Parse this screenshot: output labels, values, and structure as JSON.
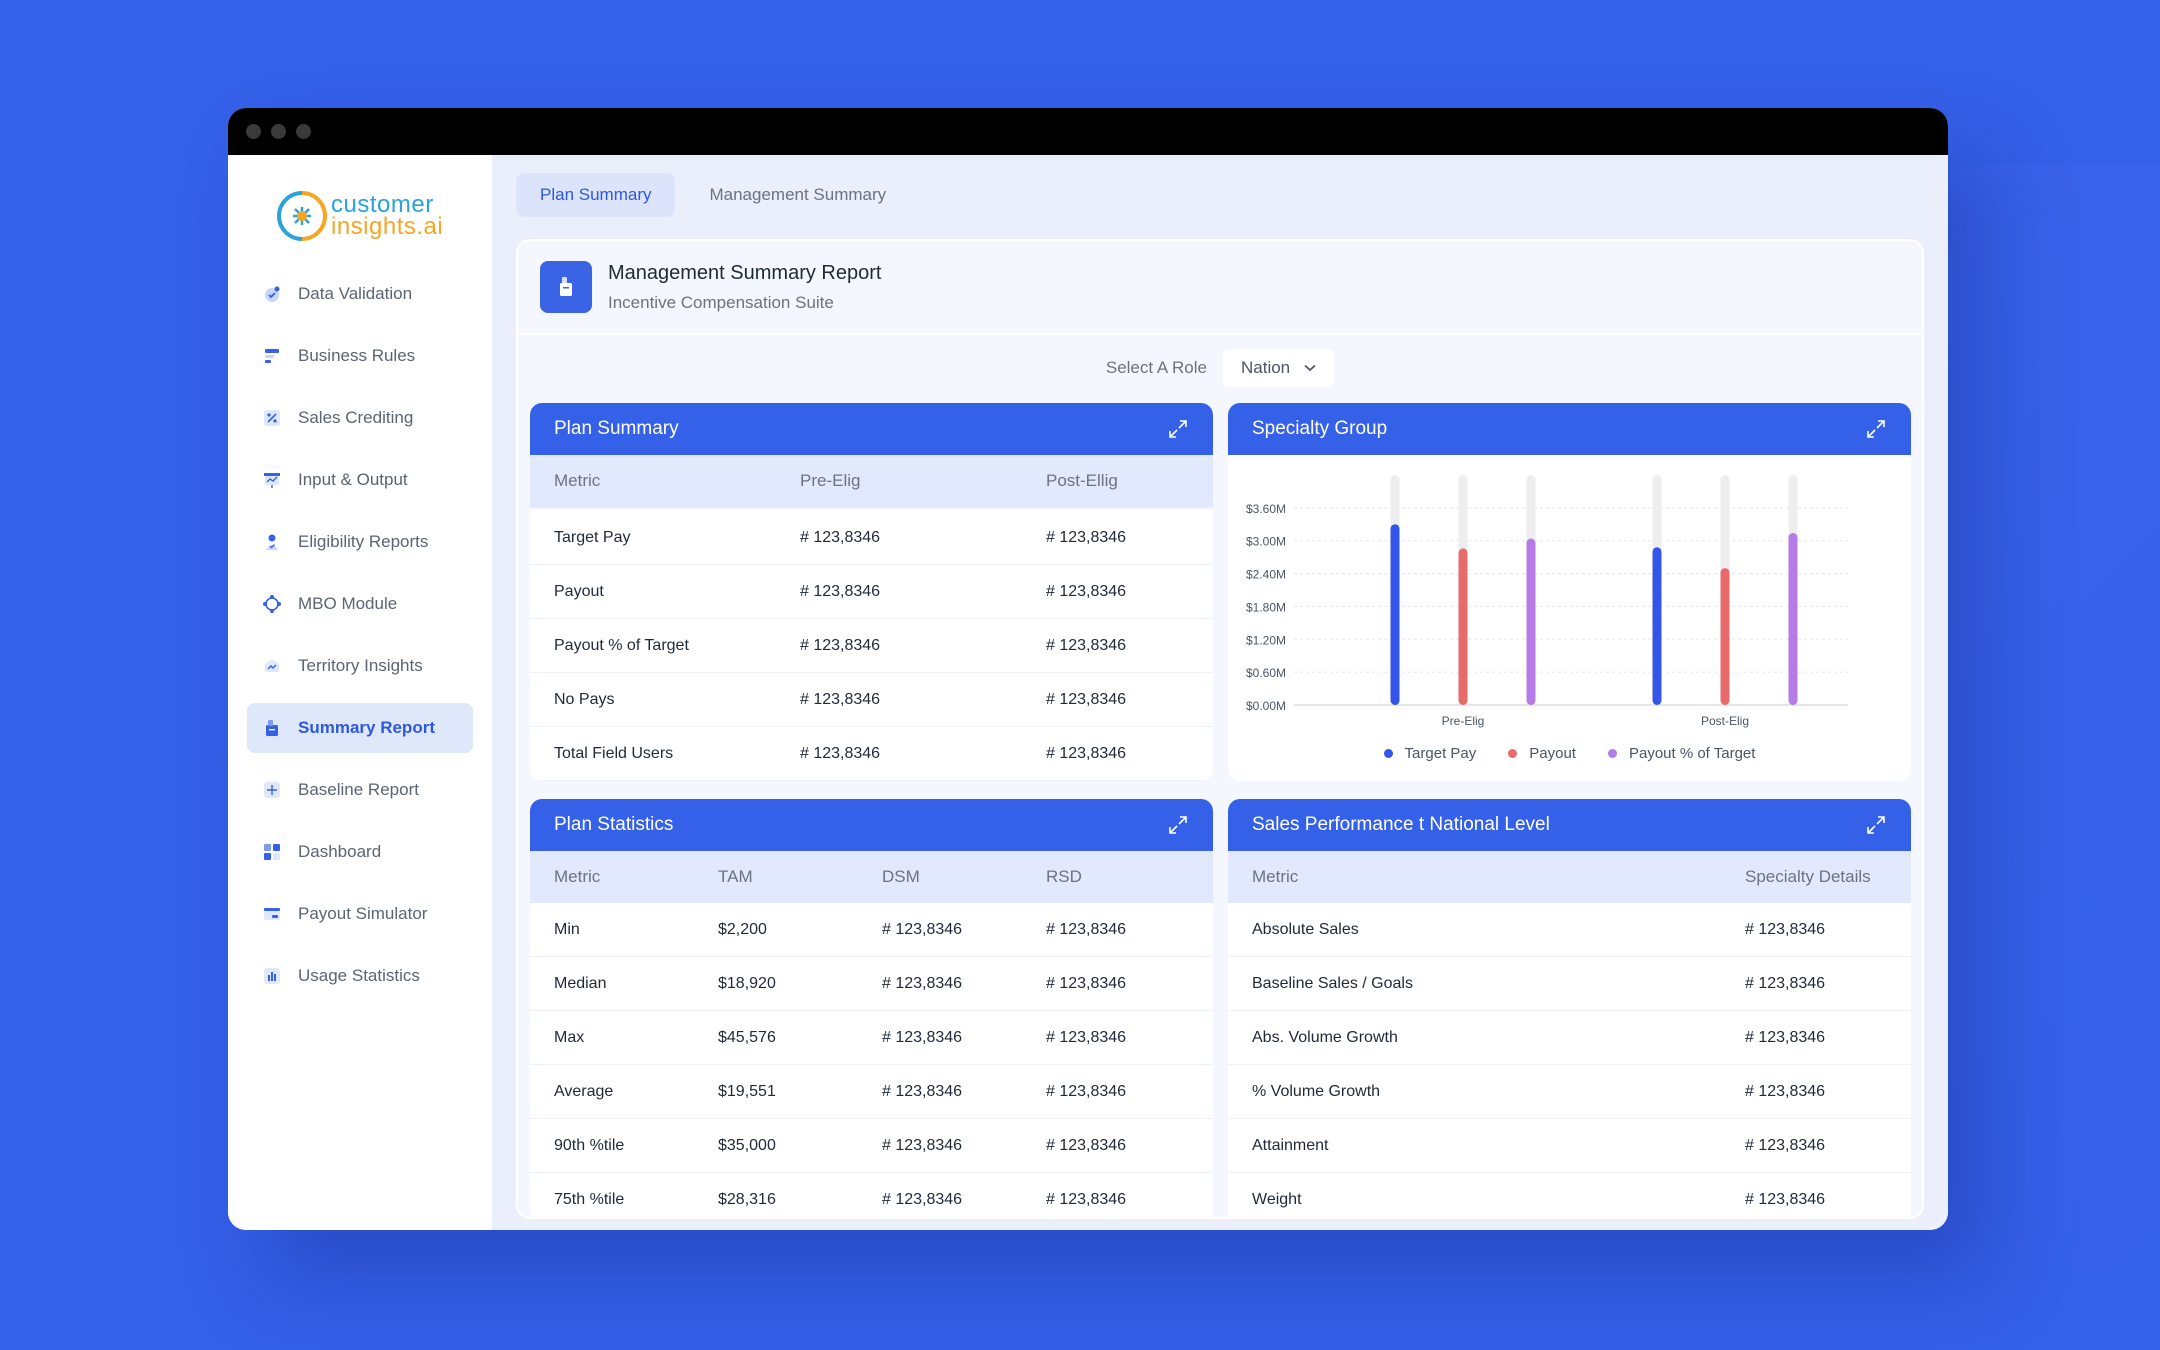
{
  "app": {
    "logo": {
      "line1": "customer",
      "line2": "insights.ai"
    }
  },
  "sidebar": {
    "items": [
      {
        "label": "Data Validation",
        "icon": "check-circle-icon"
      },
      {
        "label": "Business Rules",
        "icon": "rules-icon"
      },
      {
        "label": "Sales Crediting",
        "icon": "percent-icon"
      },
      {
        "label": "Input & Output",
        "icon": "presentation-icon"
      },
      {
        "label": "Eligibility Reports",
        "icon": "user-check-icon"
      },
      {
        "label": "MBO Module",
        "icon": "network-icon"
      },
      {
        "label": "Territory Insights",
        "icon": "territory-icon"
      },
      {
        "label": "Summary Report",
        "icon": "report-icon",
        "active": true
      },
      {
        "label": "Baseline Report",
        "icon": "baseline-icon"
      },
      {
        "label": "Dashboard",
        "icon": "dashboard-icon"
      },
      {
        "label": "Payout Simulator",
        "icon": "simulator-icon"
      },
      {
        "label": "Usage Statistics",
        "icon": "bar-chart-icon"
      }
    ]
  },
  "tabs": [
    {
      "label": "Plan Summary",
      "active": true
    },
    {
      "label": "Management Summary",
      "active": false
    }
  ],
  "report": {
    "title": "Management Summary Report",
    "subtitle": "Incentive Compensation Suite",
    "role_label": "Select A Role",
    "role_value": "Nation"
  },
  "plan_summary": {
    "title": "Plan Summary",
    "columns": [
      "Metric",
      "Pre-Elig",
      "Post-Ellig"
    ],
    "rows": [
      [
        "Target Pay",
        "# 123,8346",
        "# 123,8346"
      ],
      [
        "Payout",
        "# 123,8346",
        "# 123,8346"
      ],
      [
        "Payout % of Target",
        "# 123,8346",
        "# 123,8346"
      ],
      [
        "No Pays",
        "# 123,8346",
        "# 123,8346"
      ],
      [
        "Total Field Users",
        "# 123,8346",
        "# 123,8346"
      ]
    ]
  },
  "specialty_group": {
    "title": "Specialty Group"
  },
  "chart_data": {
    "type": "bar",
    "categories": [
      "Pre-Elig",
      "Post-Elig"
    ],
    "series": [
      {
        "name": "Target Pay",
        "values": [
          3.3,
          2.88
        ],
        "color": "#3355e8"
      },
      {
        "name": "Payout",
        "values": [
          2.86,
          2.5
        ],
        "color": "#e96a6a"
      },
      {
        "name": "Payout % of Target",
        "values": [
          3.04,
          3.14
        ],
        "color": "#b57be6"
      }
    ],
    "y_ticks": [
      "$0.00M",
      "$0.60M",
      "$1.20M",
      "$1.80M",
      "$2.40M",
      "$3.00M",
      "$3.60M"
    ],
    "ylim": [
      0,
      4.2
    ],
    "grid": true,
    "legend": "bottom"
  },
  "plan_statistics": {
    "title": "Plan Statistics",
    "columns": [
      "Metric",
      "TAM",
      "DSM",
      "RSD"
    ],
    "rows": [
      [
        "Min",
        "$2,200",
        "# 123,8346",
        "# 123,8346"
      ],
      [
        "Median",
        "$18,920",
        "# 123,8346",
        "# 123,8346"
      ],
      [
        "Max",
        "$45,576",
        "# 123,8346",
        "# 123,8346"
      ],
      [
        "Average",
        "$19,551",
        "# 123,8346",
        "# 123,8346"
      ],
      [
        "90th %tile",
        "$35,000",
        "# 123,8346",
        "# 123,8346"
      ],
      [
        "75th %tile",
        "$28,316",
        "# 123,8346",
        "# 123,8346"
      ]
    ]
  },
  "sales_performance": {
    "title": "Sales Performance t National Level",
    "columns": [
      "Metric",
      "Specialty Details"
    ],
    "rows": [
      [
        "Absolute Sales",
        "# 123,8346"
      ],
      [
        "Baseline Sales / Goals",
        "# 123,8346"
      ],
      [
        "Abs. Volume Growth",
        "# 123,8346"
      ],
      [
        "% Volume Growth",
        "# 123,8346"
      ],
      [
        "Attainment",
        "# 123,8346"
      ],
      [
        "Weight",
        "# 123,8346"
      ]
    ]
  }
}
